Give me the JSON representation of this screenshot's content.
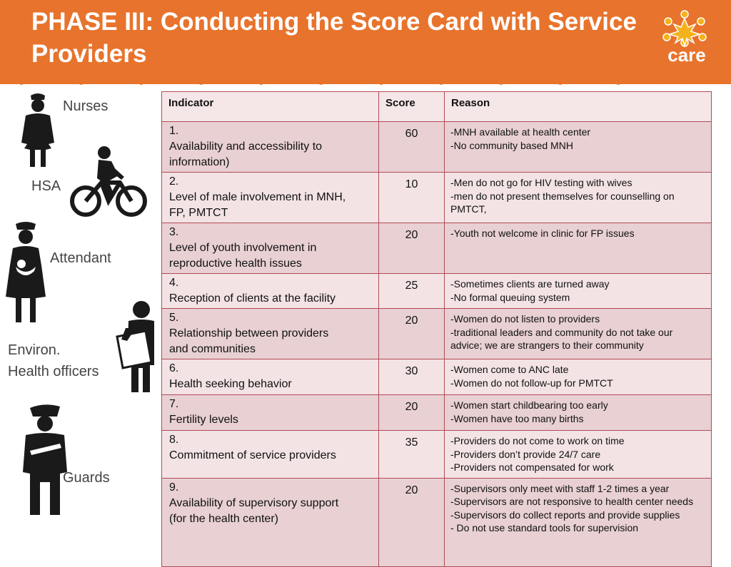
{
  "title": "PHASE III: Conducting the Score Card with Service Providers",
  "logo": {
    "text": "care"
  },
  "colors": {
    "header": "#e8732c",
    "table_border": "#b24b55",
    "row_dark": "#e8d0d3",
    "row_light": "#f3e3e5",
    "header_row": "#f5e6e8"
  },
  "stakeholders": [
    {
      "label": "Nurses",
      "icon": "nurse-icon"
    },
    {
      "label": "HSA",
      "icon": "cyclist-icon"
    },
    {
      "label": "Attendant",
      "icon": "attendant-icon"
    },
    {
      "label": "Environ.",
      "label2": "Health officers",
      "icon": "health-officer-icon"
    },
    {
      "label": "Guards",
      "icon": "guard-icon"
    }
  ],
  "table": {
    "headers": {
      "indicator": "Indicator",
      "score": "Score",
      "reason": "Reason"
    },
    "rows": [
      {
        "num": "1.",
        "indicator": "Availability and accessibility to information)",
        "score": "60",
        "reasons": [
          "-MNH available at health center",
          "-No community based MNH"
        ]
      },
      {
        "num": "2.",
        "indicator": "Level of male involvement in MNH, FP, PMTCT",
        "score": "10",
        "reasons": [
          "-Men do not go for HIV testing with wives",
          "-men do not present themselves for  counselling on PMTCT,"
        ]
      },
      {
        "num": "3.",
        "indicator": " Level of youth involvement in reproductive health issues",
        "score": "20",
        "reasons": [
          "-Youth not welcome in clinic for FP issues"
        ]
      },
      {
        "num": "4.",
        "indicator": "Reception of clients  at the facility",
        "score": "25",
        "reasons": [
          "-Sometimes clients are turned away",
          "-No formal queuing  system"
        ]
      },
      {
        "num": "5.",
        "indicator": "Relationship between providers and communities",
        "score": "20",
        "reasons": [
          "-Women do not listen to providers",
          "-traditional leaders and community do not take our advice; we are strangers to their community"
        ]
      },
      {
        "num": "6.",
        "indicator": "Health seeking behavior",
        "score": "30",
        "reasons": [
          "-Women come to ANC late",
          "-Women do not follow-up for PMTCT"
        ]
      },
      {
        "num": "7.",
        "indicator": "Fertility levels",
        "score": "20",
        "reasons": [
          "-Women start childbearing too early",
          "-Women have too many births"
        ]
      },
      {
        "num": "8.",
        "indicator": "Commitment of service providers",
        "score": "35",
        "reasons": [
          "-Providers do not come to work on time",
          "-Providers  don’t provide 24/7 care",
          "-Providers not compensated for work"
        ]
      },
      {
        "num": "9.",
        "indicator": "Availability of supervisory support (for the health center)",
        "score": "20",
        "reasons": [
          "-Supervisors only meet with staff 1-2 times a year",
          "-Supervisors are not responsive to  health center needs",
          "-Supervisors do collect reports and  provide supplies",
          "- Do not use standard tools for supervision"
        ]
      }
    ]
  }
}
